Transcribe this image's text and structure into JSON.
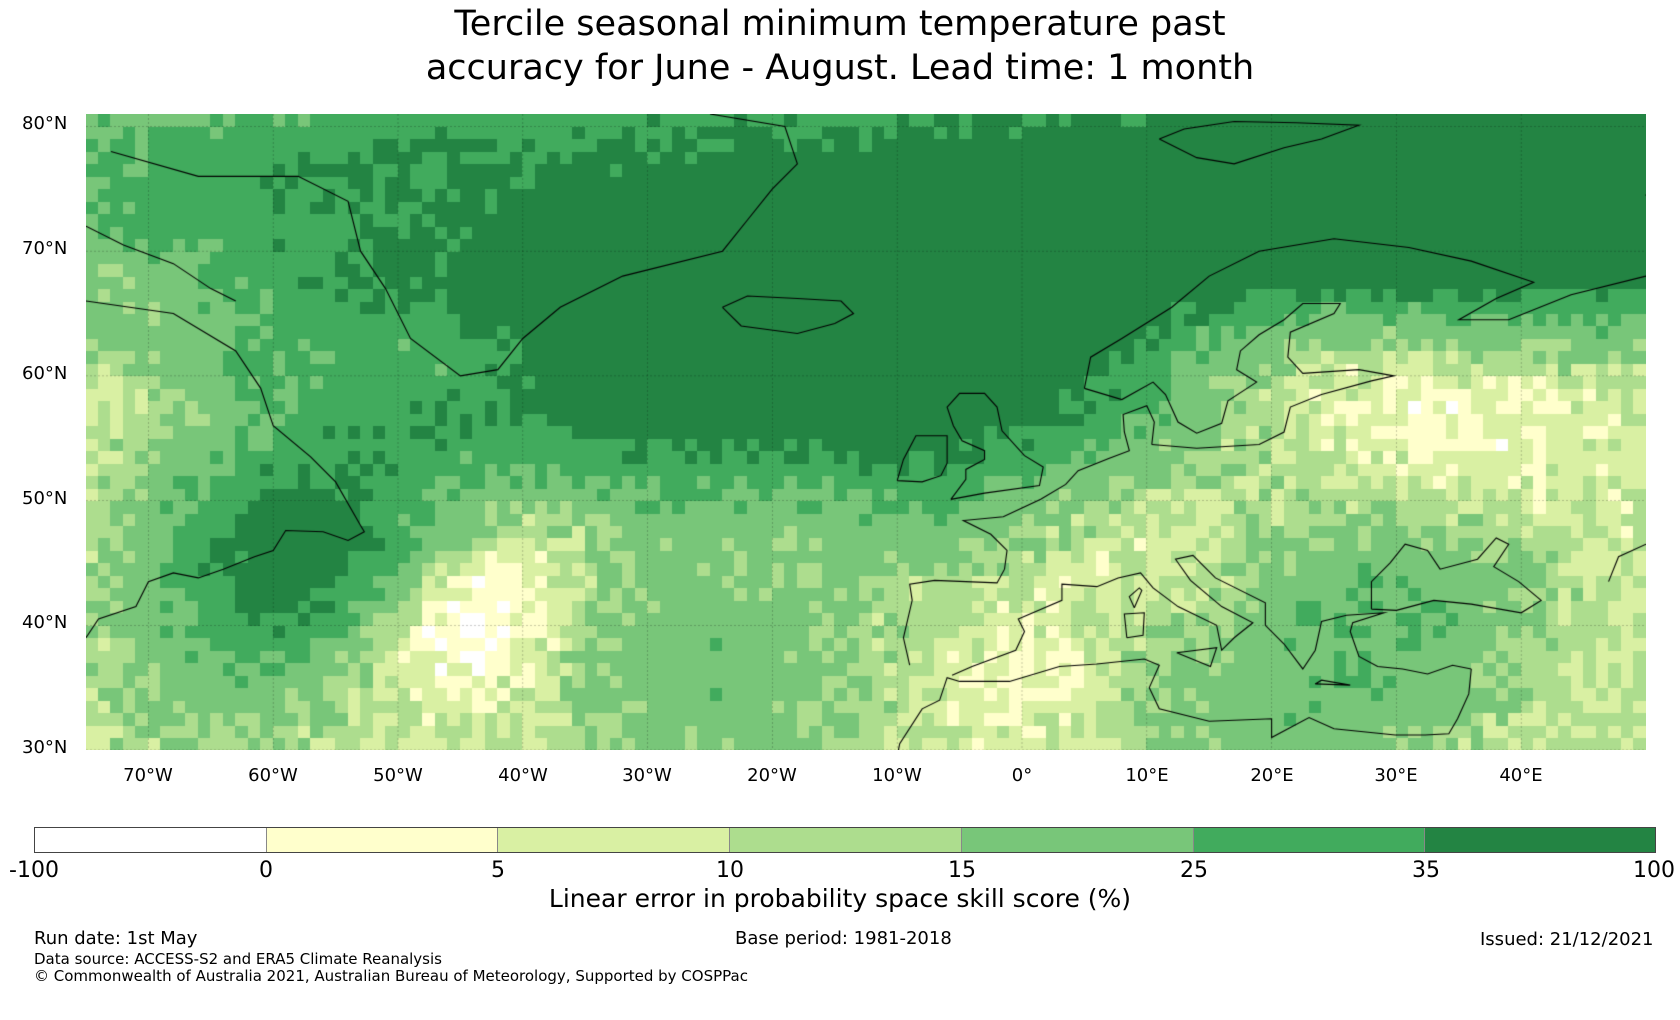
{
  "title_line1": "Tercile seasonal minimum temperature past",
  "title_line2": "accuracy for June - August. Lead time: 1 month",
  "map": {
    "lon_range": [
      -75,
      50
    ],
    "lat_range": [
      30,
      81
    ],
    "lat_labels": [
      "80°N",
      "70°N",
      "60°N",
      "50°N",
      "40°N",
      "30°N"
    ],
    "lat_values": [
      80,
      70,
      60,
      50,
      40,
      30
    ],
    "lon_labels": [
      "70°W",
      "60°W",
      "50°W",
      "40°W",
      "30°W",
      "20°W",
      "10°W",
      "0°",
      "10°E",
      "20°E",
      "30°E",
      "40°E"
    ],
    "lon_values": [
      -70,
      -60,
      -50,
      -40,
      -30,
      -20,
      -10,
      0,
      10,
      20,
      30,
      40
    ]
  },
  "colorbar": {
    "label": "Linear error in probability space skill score (%)",
    "ticks": [
      "-100",
      "0",
      "5",
      "10",
      "15",
      "25",
      "35",
      "100"
    ],
    "colors": [
      "#ffffff",
      "#ffffcc",
      "#d9f0a3",
      "#addd8e",
      "#78c679",
      "#41ab5d",
      "#238443"
    ]
  },
  "footer": {
    "run_date": "Run date: 1st May",
    "base_period": "Base period: 1981-2018",
    "issued": "Issued: 21/12/2021",
    "data_source": "Data source: ACCESS-S2 and ERA5 Climate Reanalysis",
    "copyright": "© Commonwealth of Australia 2021, Australian Bureau of Meteorology, Supported by COSPPac"
  }
}
